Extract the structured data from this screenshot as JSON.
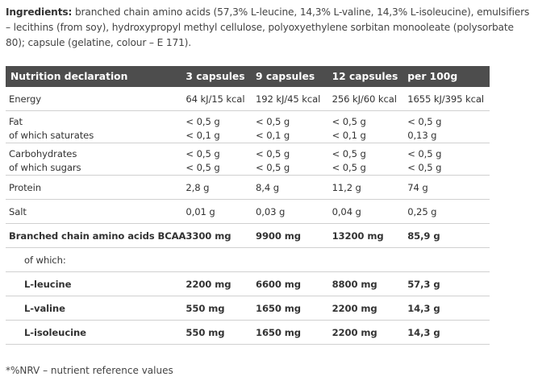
{
  "ingredients": {
    "label": "Ingredients:",
    "text": " branched chain amino acids (57,3% L-leucine, 14,3% L-valine, 14,3% L-isoleucine), emulsifiers – lecithins (from soy), hydroxypropyl methyl cellulose, polyoxyethylene sorbitan monooleate (polysorbate 80); capsule (gelatine, colour – E 171)."
  },
  "table": {
    "headers": [
      "Nutrition declaration",
      "3 capsules",
      "9 capsules",
      "12 capsules",
      "per 100g"
    ],
    "rows": [
      {
        "label": "Energy",
        "v": [
          "64 kJ/15 kcal",
          "192 kJ/45 kcal",
          "256 kJ/60 kcal",
          "1655 kJ/395 kcal"
        ]
      },
      {
        "label": "Fat",
        "v": [
          "< 0,5 g",
          "< 0,5 g",
          "< 0,5 g",
          "< 0,5 g"
        ],
        "sublabel": "of which saturates",
        "sv": [
          "< 0,1 g",
          "< 0,1 g",
          "< 0,1 g",
          "0,13 g"
        ]
      },
      {
        "label": "Carbohydrates",
        "v": [
          "< 0,5 g",
          "< 0,5 g",
          "< 0,5 g",
          "< 0,5 g"
        ],
        "sublabel": "of which sugars",
        "sv": [
          "< 0,5 g",
          "< 0,5 g",
          "< 0,5 g",
          "< 0,5 g"
        ]
      },
      {
        "label": "Protein",
        "v": [
          "2,8 g",
          "8,4 g",
          "11,2 g",
          "74 g"
        ]
      },
      {
        "label": "Salt",
        "v": [
          "0,01 g",
          "0,03 g",
          "0,04 g",
          "0,25 g"
        ]
      },
      {
        "label": "Branched chain amino acids BCAA",
        "v": [
          "3300 mg",
          "9900 mg",
          "13200 mg",
          "85,9 g"
        ]
      },
      {
        "label": "of which:",
        "v": [
          "",
          "",
          "",
          ""
        ]
      },
      {
        "label": "L-leucine",
        "v": [
          "2200 mg",
          "6600 mg",
          "8800 mg",
          "57,3 g"
        ]
      },
      {
        "label": "L-valine",
        "v": [
          "550 mg",
          "1650 mg",
          "2200 mg",
          "14,3 g"
        ]
      },
      {
        "label": "L-isoleucine",
        "v": [
          "550 mg",
          "1650 mg",
          "2200 mg",
          "14,3 g"
        ]
      }
    ]
  },
  "footnote": "*%NRV – nutrient reference values"
}
